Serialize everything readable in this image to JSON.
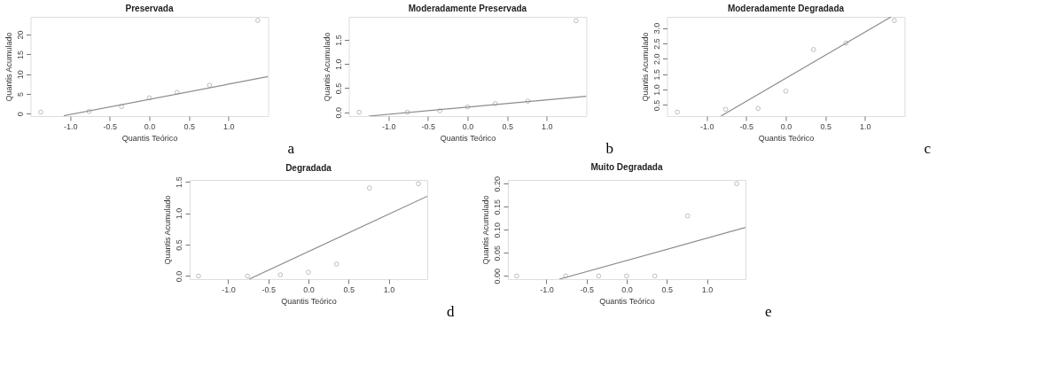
{
  "chart_data": [
    {
      "type": "scatter",
      "title": "Preservada",
      "xlabel": "Quantis Teórico",
      "ylabel": "Quantis Acumulado",
      "marker": "circle",
      "grid": false,
      "annotations": [
        "a"
      ],
      "x": [
        -1.37,
        -0.76,
        -0.35,
        0,
        0.35,
        0.76,
        1.37
      ],
      "xlim": [
        -1.5,
        1.5
      ],
      "xticks": [
        {
          "value": -1,
          "label": "-1.0"
        },
        {
          "value": -0.5,
          "label": "-0.5"
        },
        {
          "value": 0,
          "label": "0.0"
        },
        {
          "value": 0.5,
          "label": "0.5"
        },
        {
          "value": 1,
          "label": "1.0"
        }
      ],
      "ylim": [
        -0.6,
        24.5
      ],
      "yticks": [
        0,
        5,
        10,
        15,
        20
      ],
      "series": [
        {
          "color": "#a0a0a0",
          "values": [
            0.4,
            0.6,
            1.8,
            4.0,
            5.4,
            7.2,
            23.6
          ]
        },
        {
          "type": "line",
          "marker": "none",
          "line_style": "solid",
          "color": "#8c8c8c",
          "x": [
            -1.08,
            1.5
          ],
          "values": [
            -0.5,
            9.4
          ]
        }
      ]
    },
    {
      "type": "scatter",
      "title": "Moderadamente Preservada",
      "xlabel": "Quantis Teórico",
      "ylabel": "Quantis Acumulado",
      "marker": "circle",
      "grid": false,
      "annotations": [
        "b"
      ],
      "x": [
        -1.37,
        -0.76,
        -0.35,
        0,
        0.35,
        0.76,
        1.37
      ],
      "xlim": [
        -1.5,
        1.5
      ],
      "xticks": [
        {
          "value": -1,
          "label": "-1.0"
        },
        {
          "value": -0.5,
          "label": "-0.5"
        },
        {
          "value": 0,
          "label": "0.0"
        },
        {
          "value": 0.5,
          "label": "0.5"
        },
        {
          "value": 1,
          "label": "1.0"
        }
      ],
      "ylim": [
        -0.08,
        1.98
      ],
      "yticks": [
        {
          "value": 0,
          "label": "0.0"
        },
        0.5,
        {
          "value": 1,
          "label": "1.0"
        },
        1.5
      ],
      "series": [
        {
          "color": "#a0a0a0",
          "values": [
            0.0,
            0.0,
            0.03,
            0.11,
            0.18,
            0.23,
            1.9
          ]
        },
        {
          "type": "line",
          "marker": "none",
          "line_style": "solid",
          "color": "#8c8c8c",
          "x": [
            -1.25,
            1.5
          ],
          "values": [
            -0.08,
            0.33
          ]
        }
      ]
    },
    {
      "type": "scatter",
      "title": "Moderadamente Degradada",
      "xlabel": "Quantis Teórico",
      "ylabel": "Quantis Acumulado",
      "marker": "circle",
      "grid": false,
      "annotations": [
        "c"
      ],
      "x": [
        -1.37,
        -0.76,
        -0.35,
        0,
        0.35,
        0.76,
        1.37
      ],
      "xlim": [
        -1.5,
        1.5
      ],
      "xticks": [
        {
          "value": -1,
          "label": "-1.0"
        },
        {
          "value": -0.5,
          "label": "-0.5"
        },
        {
          "value": 0,
          "label": "0.0"
        },
        {
          "value": 0.5,
          "label": "0.5"
        },
        {
          "value": 1,
          "label": "1.0"
        }
      ],
      "ylim": [
        0.14,
        3.36
      ],
      "yticks": [
        0.5,
        {
          "value": 1,
          "label": "1.0"
        },
        1.5,
        {
          "value": 2,
          "label": "2.0"
        },
        2.5,
        {
          "value": 3,
          "label": "3.0"
        }
      ],
      "series": [
        {
          "color": "#a0a0a0",
          "values": [
            0.27,
            0.36,
            0.39,
            0.95,
            2.3,
            2.51,
            3.24
          ]
        },
        {
          "type": "line",
          "marker": "none",
          "line_style": "solid",
          "color": "#8c8c8c",
          "x": [
            -0.82,
            1.33
          ],
          "values": [
            0.14,
            3.36
          ]
        }
      ]
    },
    {
      "type": "scatter",
      "title": "Degradada",
      "xlabel": "Quantis Teórico",
      "ylabel": "Quantis Acumulado",
      "marker": "circle",
      "grid": false,
      "annotations": [
        "d"
      ],
      "x": [
        -1.37,
        -0.76,
        -0.35,
        0,
        0.35,
        0.76,
        1.37
      ],
      "xlim": [
        -1.48,
        1.48
      ],
      "xticks": [
        {
          "value": -1,
          "label": "-1.0"
        },
        {
          "value": -0.5,
          "label": "-0.5"
        },
        {
          "value": 0,
          "label": "0.0"
        },
        {
          "value": 0.5,
          "label": "0.5"
        },
        {
          "value": 1,
          "label": "1.0"
        }
      ],
      "ylim": [
        -0.05,
        1.53
      ],
      "yticks": [
        {
          "value": 0,
          "label": "0.0"
        },
        0.5,
        {
          "value": 1,
          "label": "1.0"
        },
        1.5
      ],
      "series": [
        {
          "color": "#a0a0a0",
          "values": [
            0.0,
            0.0,
            0.02,
            0.06,
            0.19,
            1.4,
            1.47
          ]
        },
        {
          "type": "line",
          "marker": "none",
          "line_style": "solid",
          "color": "#8c8c8c",
          "x": [
            -0.74,
            1.48
          ],
          "values": [
            -0.05,
            1.27
          ]
        }
      ]
    },
    {
      "type": "scatter",
      "title": "Muito Degradada",
      "xlabel": "Quantis Teórico",
      "ylabel": "Quantis Acumulado",
      "marker": "circle",
      "grid": false,
      "annotations": [
        "e"
      ],
      "x": [
        -1.37,
        -0.76,
        -0.35,
        0,
        0.35,
        0.76,
        1.37
      ],
      "xlim": [
        -1.48,
        1.48
      ],
      "xticks": [
        {
          "value": -1,
          "label": "-1.0"
        },
        {
          "value": -0.5,
          "label": "-0.5"
        },
        {
          "value": 0,
          "label": "0.0"
        },
        {
          "value": 0.5,
          "label": "0.5"
        },
        {
          "value": 1,
          "label": "1.0"
        }
      ],
      "ylim": [
        -0.007,
        0.208
      ],
      "yticks": [
        {
          "value": 0,
          "label": "0.00"
        },
        0.05,
        {
          "value": 0.1,
          "label": "0.10"
        },
        0.15,
        {
          "value": 0.2,
          "label": "0.20"
        }
      ],
      "series": [
        {
          "color": "#a0a0a0",
          "values": [
            0,
            0,
            0,
            0,
            0,
            0.13,
            0.2
          ]
        },
        {
          "type": "line",
          "marker": "none",
          "line_style": "solid",
          "color": "#8c8c8c",
          "x": [
            -0.84,
            1.48
          ],
          "values": [
            -0.007,
            0.105
          ]
        }
      ]
    }
  ]
}
